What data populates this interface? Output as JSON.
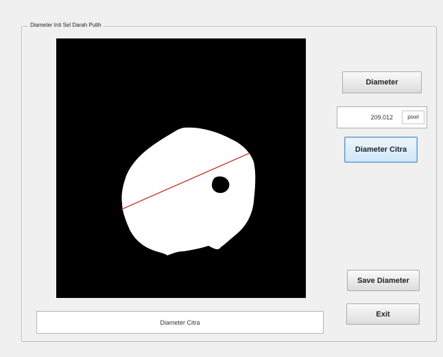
{
  "panel": {
    "title": "Diameter Inti Sel Darah Putih"
  },
  "buttons": {
    "diameter_label": "Diameter",
    "diameter_citra_label": "Diameter Citra",
    "save_diameter_label": "Save Diameter",
    "exit_label": "Exit"
  },
  "result": {
    "value": "209.012",
    "unit": "pixel"
  },
  "status": {
    "text": "Diameter Citra"
  },
  "colors": {
    "image_background": "#000000",
    "cell_fill": "#ffffff",
    "diameter_line": "#c0392b",
    "focus_border": "#5b9bd5"
  }
}
